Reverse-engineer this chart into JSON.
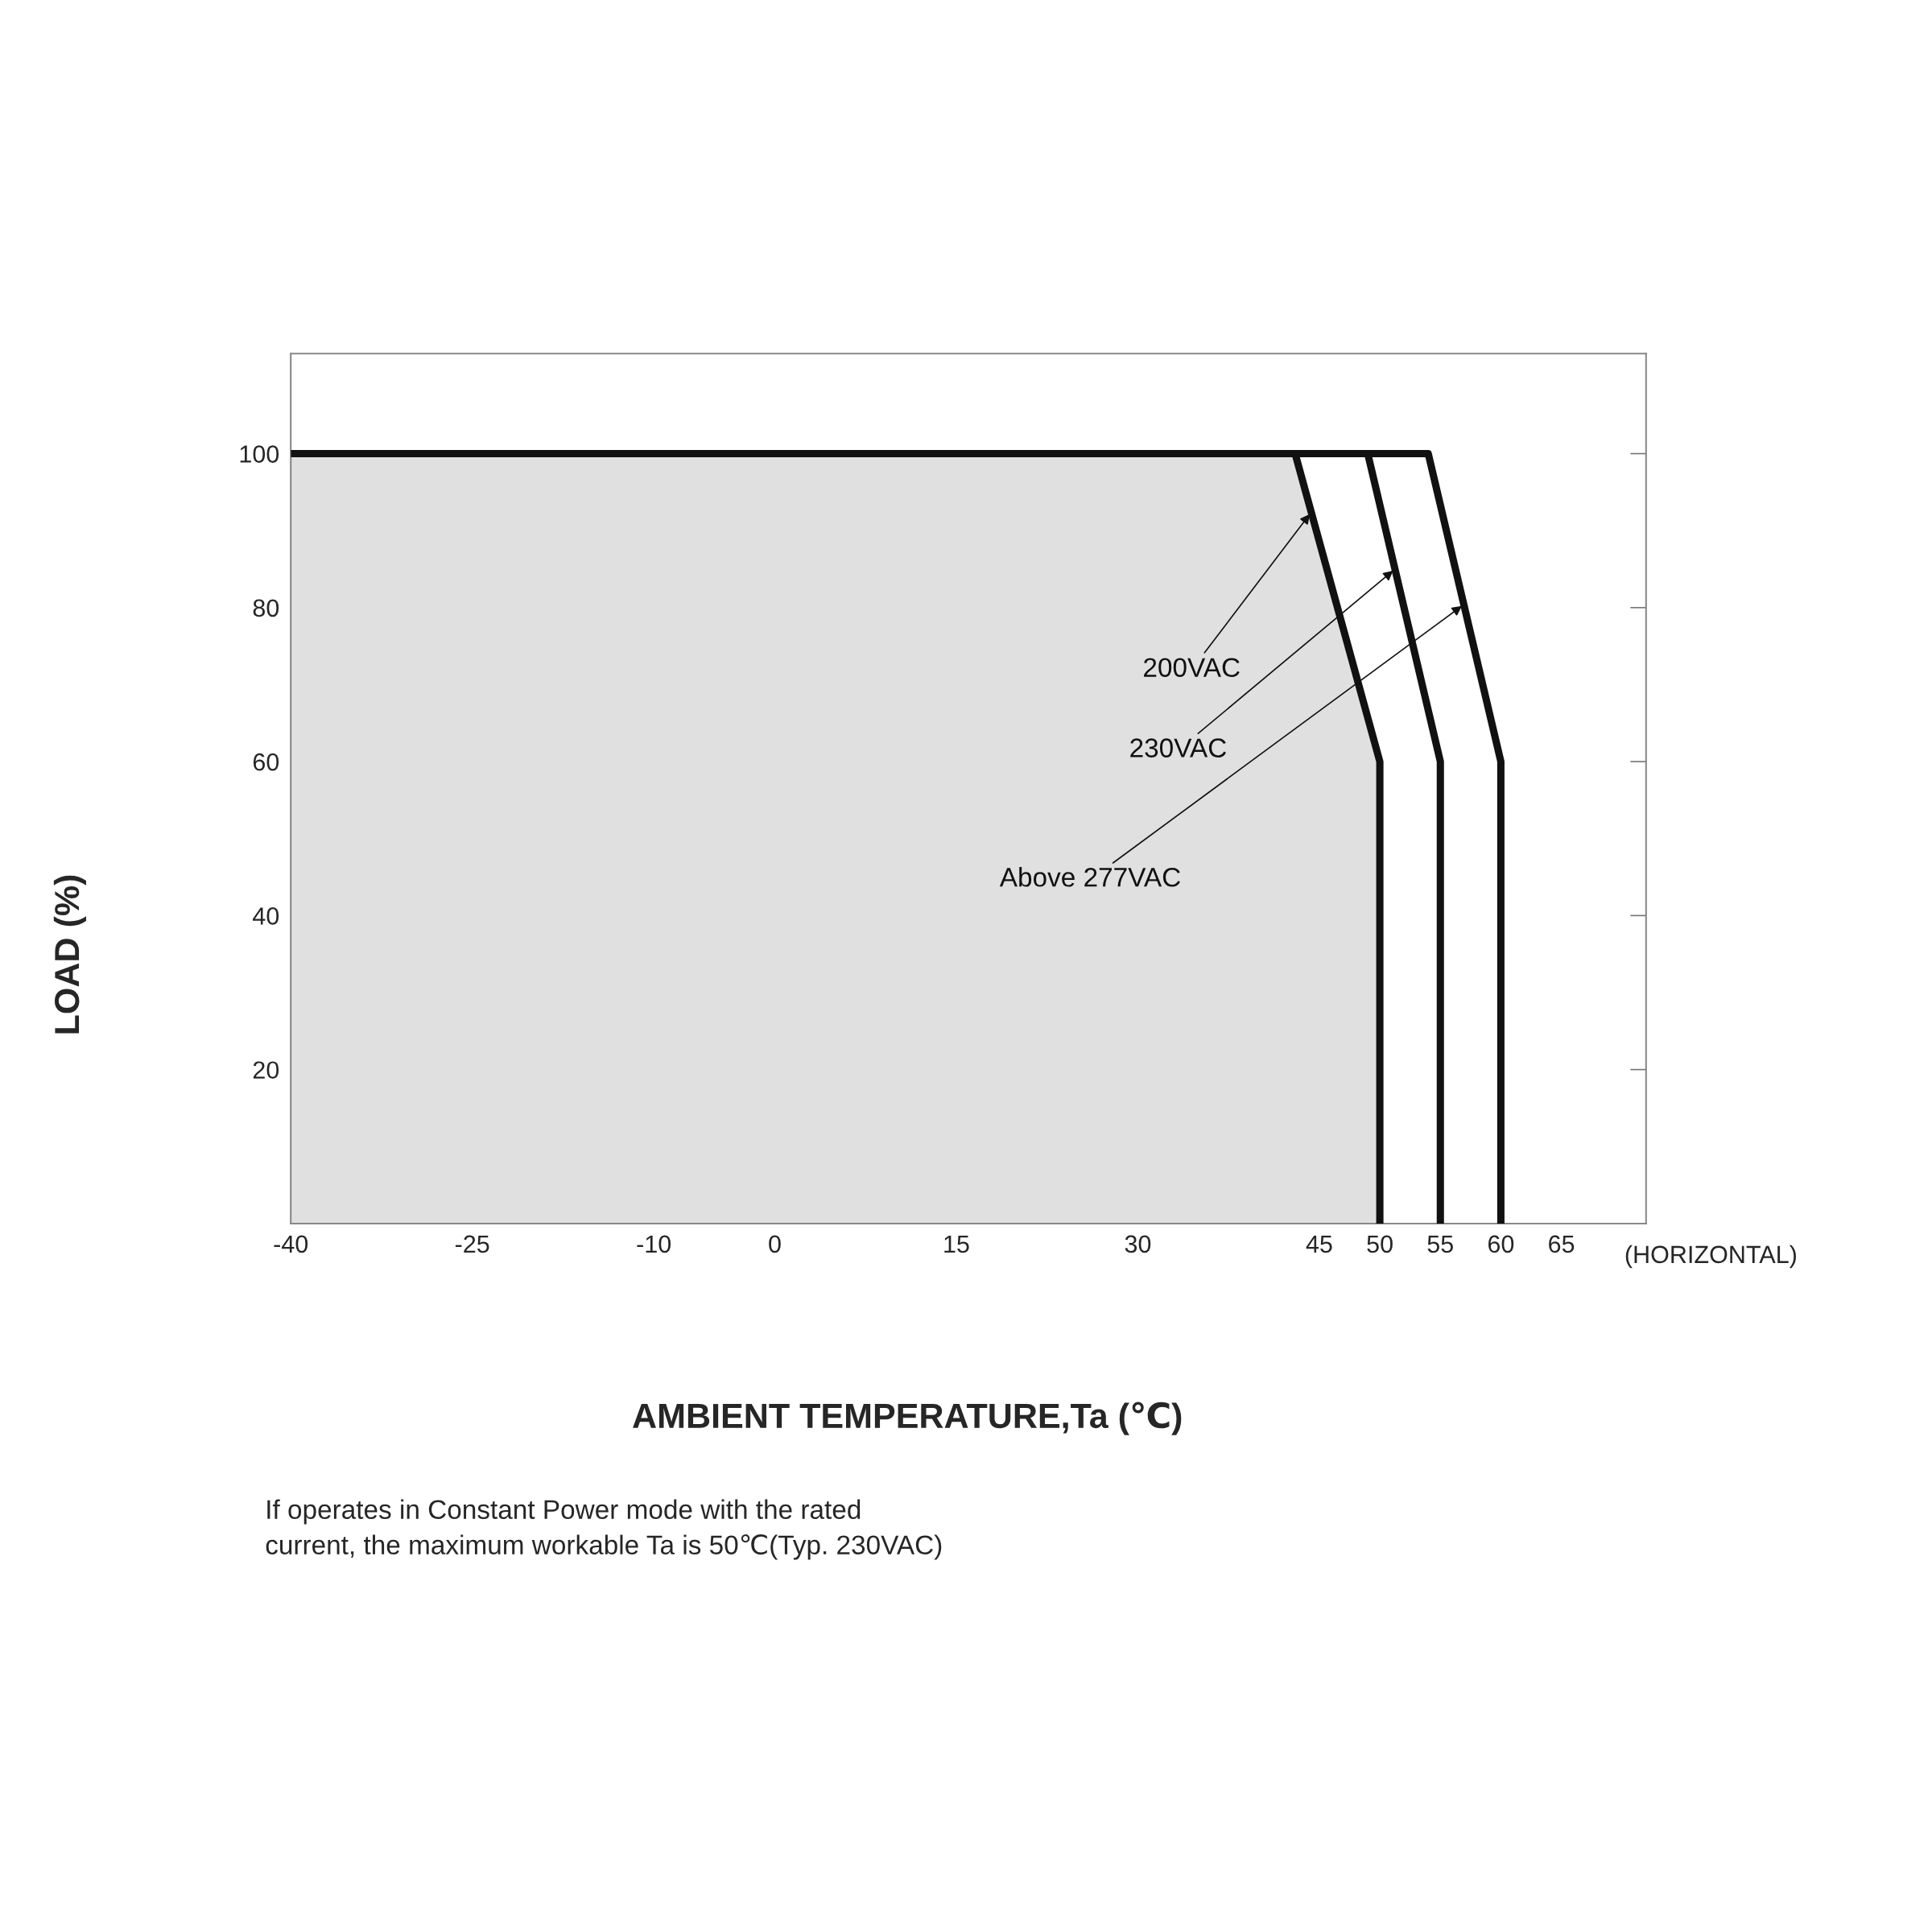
{
  "chart_data": {
    "type": "line",
    "xlabel": "AMBIENT TEMPERATURE,Ta (℃)",
    "ylabel": "LOAD (%)",
    "xlim": [
      -40,
      72
    ],
    "ylim": [
      0,
      113
    ],
    "xticks": [
      -40,
      -25,
      -10,
      0,
      15,
      30,
      45,
      50,
      55,
      60,
      65
    ],
    "yticks": [
      20,
      40,
      60,
      80,
      100
    ],
    "grid": false,
    "legend": false,
    "series": [
      {
        "type": "area",
        "name": "200VAC",
        "color": "#111111",
        "x": [
          -40,
          43,
          50,
          50
        ],
        "values": [
          100,
          100,
          60,
          0
        ]
      },
      {
        "name": "230VAC",
        "color": "#111111",
        "x": [
          43,
          49,
          55,
          55
        ],
        "values": [
          100,
          100,
          60,
          0
        ]
      },
      {
        "name": "Above 277VAC",
        "color": "#111111",
        "x": [
          49,
          54,
          60,
          60
        ],
        "values": [
          100,
          100,
          60,
          0
        ]
      }
    ],
    "annotations": [
      "(HORIZONTAL)",
      "If operates in Constant Power mode with the rated\ncurrent, the maximum workable Ta is 50℃(Typ. 230VAC)"
    ]
  }
}
